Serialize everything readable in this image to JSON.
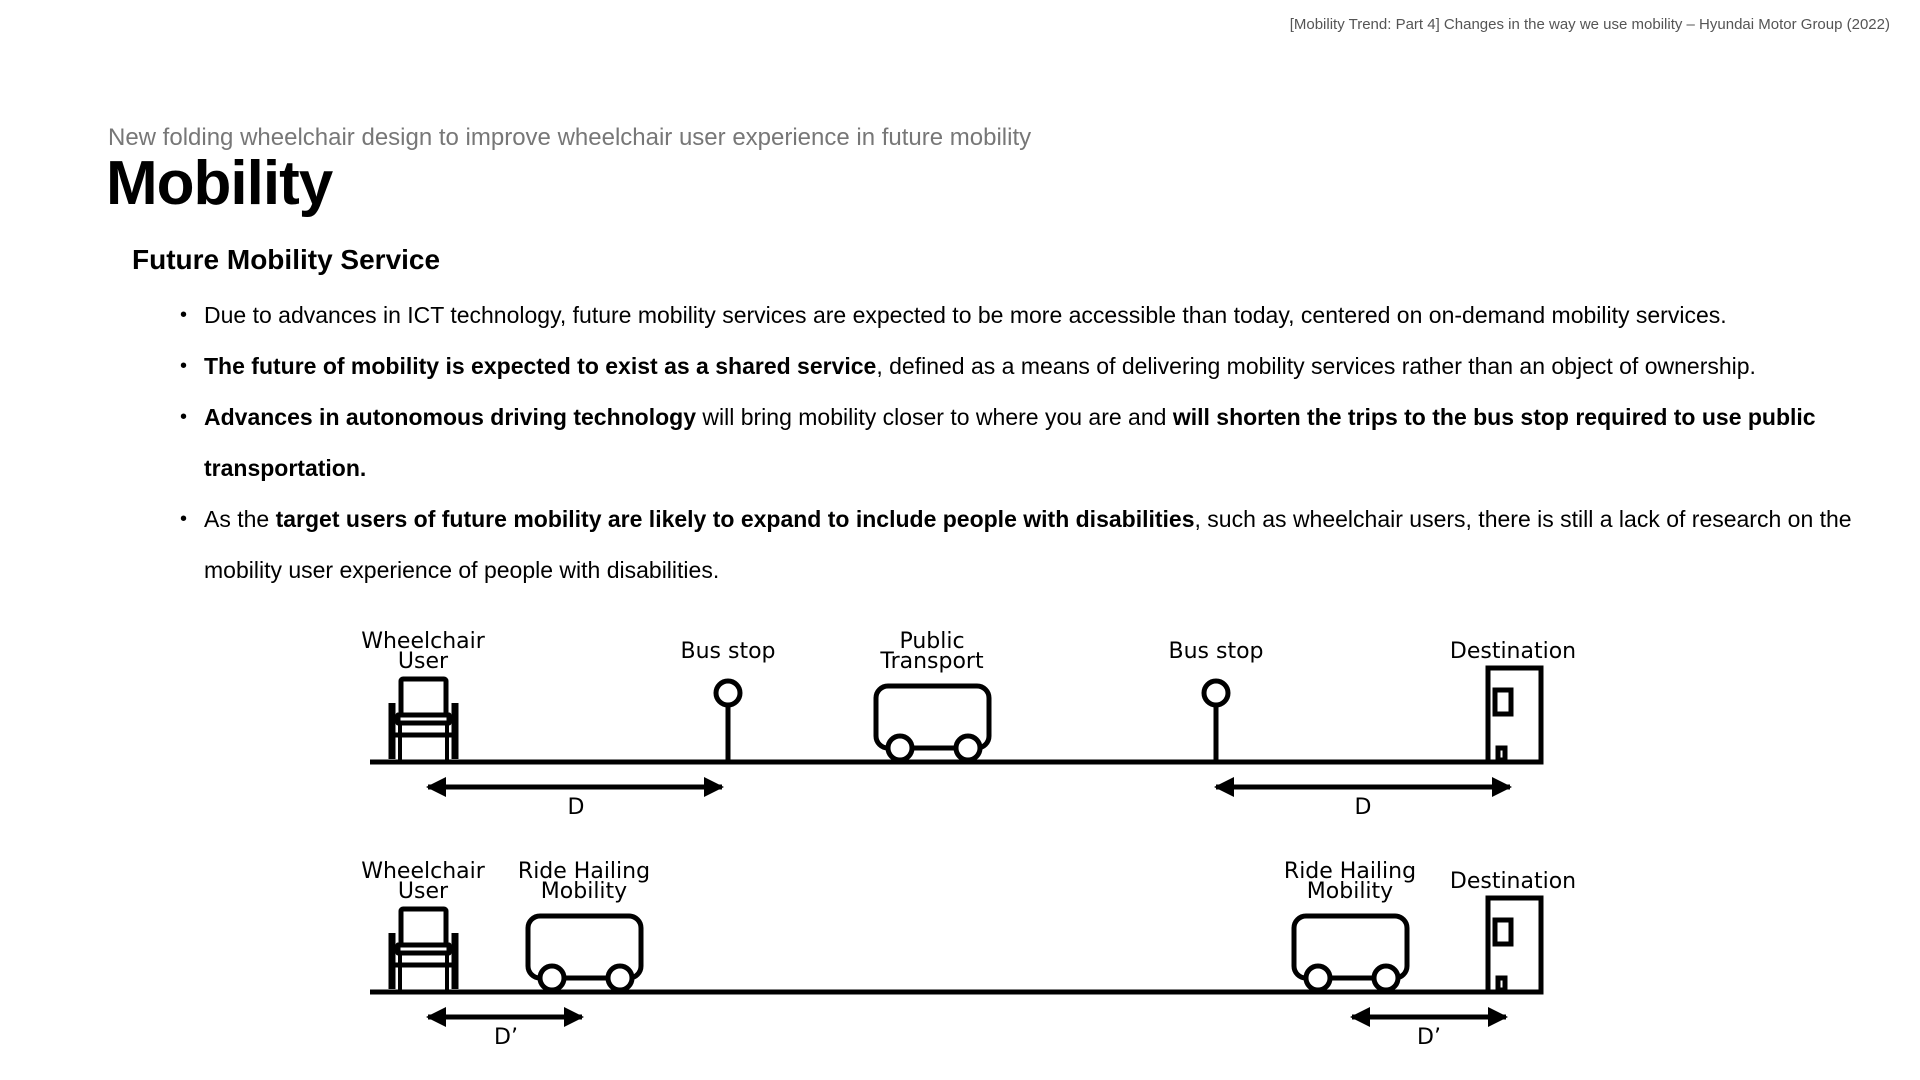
{
  "citation": "[Mobility Trend: Part 4] Changes in the way we use mobility – Hyundai Motor Group (2022)",
  "subtitle": "New folding wheelchair design to improve wheelchair user experience in future mobility",
  "title": "Mobility",
  "section_heading": "Future Mobility Service",
  "bullets": [
    {
      "segments": [
        {
          "text": "Due to advances in ICT technology, future mobility services are expected to be more accessible than today, centered on on-demand mobility services.",
          "bold": false
        }
      ]
    },
    {
      "segments": [
        {
          "text": "The future of mobility is expected to exist as a shared service",
          "bold": true
        },
        {
          "text": ", defined as a means of delivering mobility services rather than an object of ownership.",
          "bold": false
        }
      ]
    },
    {
      "segments": [
        {
          "text": "Advances in autonomous driving technology",
          "bold": true
        },
        {
          "text": " will bring mobility closer to where you are and ",
          "bold": false
        },
        {
          "text": "will shorten the trips to the bus stop required to use public transportation.",
          "bold": true
        }
      ]
    },
    {
      "segments": [
        {
          "text": "As the ",
          "bold": false
        },
        {
          "text": "target users of future mobility are likely to expand to include people with disabilities",
          "bold": true
        },
        {
          "text": ", such as wheelchair users, there is still a lack of research on the mobility user experience of people with disabilities.",
          "bold": false
        }
      ]
    }
  ],
  "diagram": {
    "row1": {
      "wheelchair_label": [
        "Wheelchair",
        "User"
      ],
      "bus_stop_left_label": "Bus stop",
      "public_transport_label": [
        "Public",
        "Transport"
      ],
      "bus_stop_right_label": "Bus stop",
      "destination_label": "Destination",
      "distance_left": "D",
      "distance_right": "D"
    },
    "row2": {
      "wheelchair_label": [
        "Wheelchair",
        "User"
      ],
      "ride_hailing_left_label": [
        "Ride Hailing",
        "Mobility"
      ],
      "ride_hailing_right_label": [
        "Ride Hailing",
        "Mobility"
      ],
      "destination_label": "Destination",
      "distance_left": "D’",
      "distance_right": "D’"
    }
  }
}
